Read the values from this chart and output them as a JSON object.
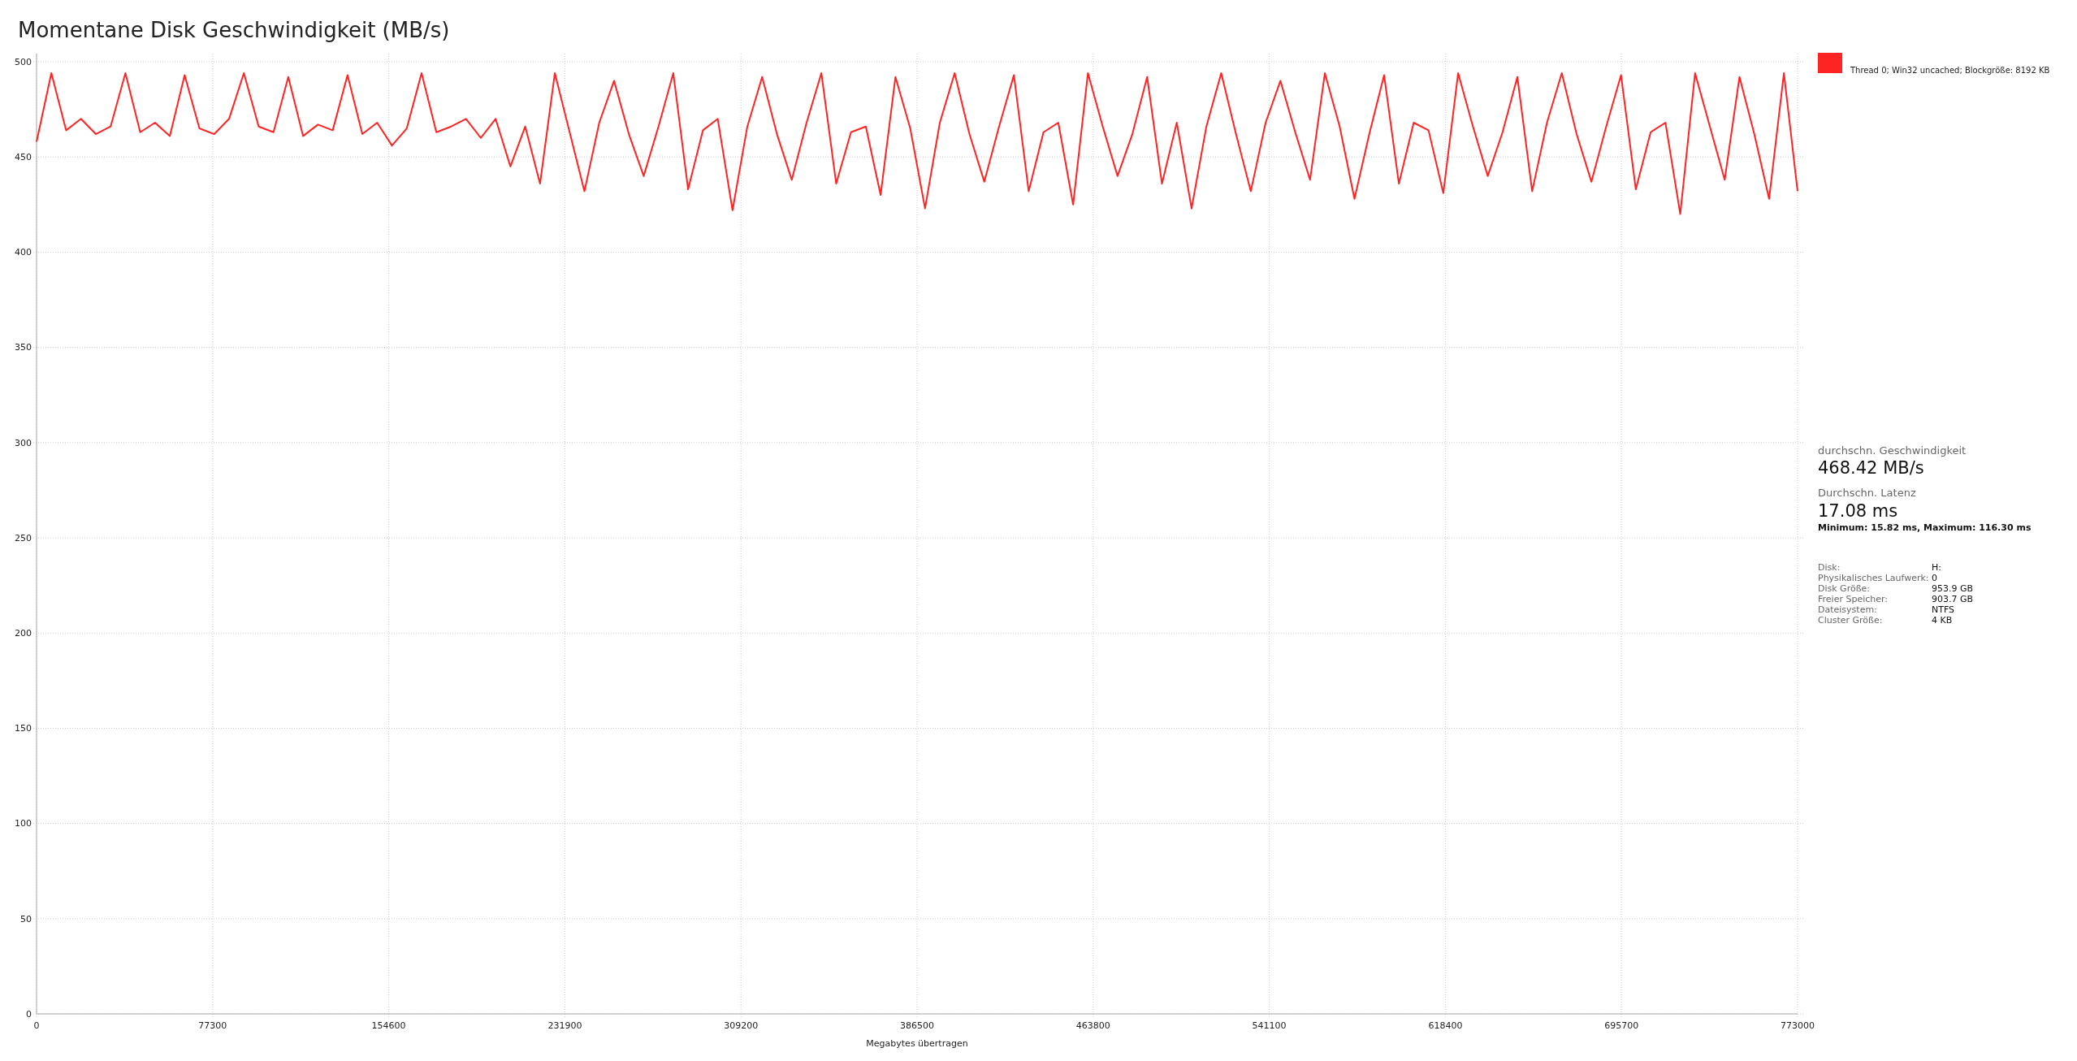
{
  "chart_data": {
    "type": "line",
    "title": "Momentane Disk Geschwindigkeit (MB/s)",
    "xlabel": "Megabytes übertragen",
    "x": [
      0,
      6500,
      13000,
      19500,
      26000,
      32500,
      39000,
      45500,
      52000,
      58500,
      65000,
      71500,
      78000,
      84500,
      91000,
      97500,
      104000,
      110500,
      117000,
      123500,
      130000,
      136500,
      143000,
      149500,
      156000,
      162500,
      169000,
      175500,
      182000,
      188500,
      195000,
      201500,
      208000,
      214500,
      221000,
      227500,
      234000,
      240500,
      247000,
      253500,
      260000,
      266500,
      273000,
      279500,
      286000,
      292500,
      299000,
      305500,
      312000,
      318500,
      325000,
      331500,
      338000,
      344500,
      351000,
      357500,
      364000,
      370500,
      377000,
      383500,
      390000,
      396500,
      403000,
      409500,
      416000,
      422500,
      429000,
      435500,
      442000,
      448500,
      455000,
      461500,
      468000,
      474500,
      481000,
      487500,
      494000,
      500500,
      507000,
      513500,
      520000,
      526500,
      533000,
      539500,
      546000,
      552500,
      559000,
      565500,
      572000,
      578500,
      585000,
      591500,
      598000,
      604500,
      611000,
      617500,
      624000,
      630500,
      637000,
      643500,
      650000,
      656500,
      663000,
      669500,
      676000,
      682500,
      689000,
      695500,
      702000,
      708500,
      715000,
      721500,
      728000,
      734500,
      741000,
      747500,
      754000,
      760500,
      767000,
      773000
    ],
    "series": [
      {
        "color": "#ff2424",
        "values": [
          458,
          494,
          464,
          470,
          462,
          466,
          494,
          463,
          468,
          461,
          493,
          465,
          462,
          470,
          494,
          466,
          463,
          492,
          461,
          467,
          464,
          493,
          462,
          468,
          456,
          465,
          494,
          463,
          466,
          470,
          460,
          470,
          445,
          466,
          436,
          494,
          463,
          432,
          468,
          490,
          462,
          440,
          466,
          494,
          433,
          464,
          470,
          422,
          466,
          492,
          462,
          438,
          468,
          494,
          436,
          463,
          466,
          430,
          492,
          465,
          423,
          468,
          494,
          462,
          437,
          466,
          493,
          432,
          463,
          468,
          425,
          494,
          466,
          440,
          462,
          492,
          436,
          468,
          423,
          466,
          494,
          462,
          432,
          468,
          490,
          463,
          438,
          494,
          466,
          428,
          462,
          493,
          436,
          468,
          464,
          431,
          494,
          466,
          440,
          463,
          492,
          432,
          468,
          494,
          462,
          437,
          466,
          493,
          433,
          463,
          468,
          420,
          494,
          466,
          438,
          492,
          462,
          428,
          494,
          432
        ]
      }
    ],
    "xlim": [
      0,
      773000
    ],
    "xticks": [
      0,
      77300,
      154600,
      231900,
      309200,
      386500,
      463800,
      541100,
      618400,
      695700,
      773000
    ],
    "ylim": [
      0,
      500
    ],
    "yticks": [
      0,
      50,
      100,
      150,
      200,
      250,
      300,
      350,
      400,
      450,
      500
    ],
    "grid": true,
    "marker": "none",
    "line_style": "solid",
    "annotations": [
      "Thread 0; Win32 uncached; Blockgröße: 8192 KB",
      "durchschn. Geschwindigkeit",
      "468.42 MB/s",
      "Durchschn. Latenz",
      "17.08 ms",
      "Minimum: 15.82 ms, Maximum: 116.30 ms",
      "Disk:",
      "H:",
      "Physikalisches Laufwerk:",
      "0",
      "Disk Größe:",
      "953.9 GB",
      "Freier Speicher:",
      "903.7 GB",
      "Dateisystem:",
      "NTFS",
      "Cluster Größe:",
      "4 KB"
    ]
  }
}
